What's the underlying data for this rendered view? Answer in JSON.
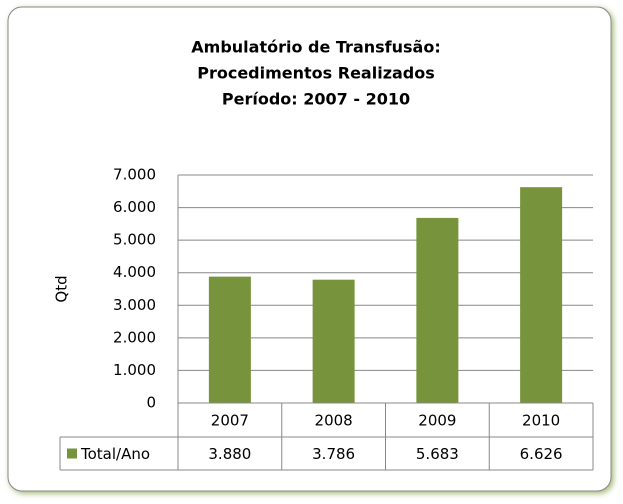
{
  "chart_data": {
    "type": "bar",
    "title": [
      "Ambulatório de Transfusão:",
      "Procedimentos Realizados",
      "Período: 2007 - 2010"
    ],
    "y_label": "Qtd",
    "categories": [
      "2007",
      "2008",
      "2009",
      "2010"
    ],
    "series": [
      {
        "name": "Total/Ano",
        "color": "#77933c",
        "values": [
          3880,
          3786,
          5683,
          6626
        ],
        "value_labels": [
          "3.880",
          "3.786",
          "5.683",
          "6.626"
        ]
      }
    ],
    "ylim": [
      0,
      7000
    ],
    "yticks": [
      0,
      {
        "value": 1000,
        "label": "1.000"
      },
      {
        "value": 2000,
        "label": "2.000"
      },
      {
        "value": 3000,
        "label": "3.000"
      },
      {
        "value": 4000,
        "label": "4.000"
      },
      {
        "value": 5000,
        "label": "5.000"
      },
      {
        "value": 6000,
        "label": "6.000"
      },
      {
        "value": 7000,
        "label": "7.000"
      }
    ],
    "grid": true,
    "data_table": true
  }
}
